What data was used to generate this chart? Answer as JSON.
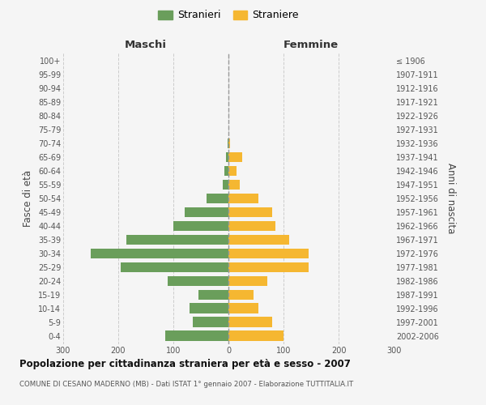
{
  "age_groups": [
    "0-4",
    "5-9",
    "10-14",
    "15-19",
    "20-24",
    "25-29",
    "30-34",
    "35-39",
    "40-44",
    "45-49",
    "50-54",
    "55-59",
    "60-64",
    "65-69",
    "70-74",
    "75-79",
    "80-84",
    "85-89",
    "90-94",
    "95-99",
    "100+"
  ],
  "birth_years": [
    "2002-2006",
    "1997-2001",
    "1992-1996",
    "1987-1991",
    "1982-1986",
    "1977-1981",
    "1972-1976",
    "1967-1971",
    "1962-1966",
    "1957-1961",
    "1952-1956",
    "1947-1951",
    "1942-1946",
    "1937-1941",
    "1932-1936",
    "1927-1931",
    "1922-1926",
    "1917-1921",
    "1912-1916",
    "1907-1911",
    "≤ 1906"
  ],
  "males": [
    115,
    65,
    70,
    55,
    110,
    195,
    250,
    185,
    100,
    80,
    40,
    10,
    7,
    5,
    2,
    0,
    0,
    0,
    0,
    0,
    0
  ],
  "females": [
    100,
    80,
    55,
    45,
    70,
    145,
    145,
    110,
    85,
    80,
    55,
    20,
    15,
    25,
    3,
    0,
    0,
    0,
    0,
    0,
    0
  ],
  "male_color": "#6a9e5b",
  "female_color": "#f5b731",
  "title": "Popolazione per cittadinanza straniera per età e sesso - 2007",
  "subtitle": "COMUNE DI CESANO MADERNO (MB) - Dati ISTAT 1° gennaio 2007 - Elaborazione TUTTITALIA.IT",
  "xlabel_left": "Maschi",
  "xlabel_right": "Femmine",
  "ylabel_left": "Fasce di età",
  "ylabel_right": "Anni di nascita",
  "legend_male": "Stranieri",
  "legend_female": "Straniere",
  "xlim": 300,
  "background_color": "#f5f5f5",
  "grid_color": "#cccccc"
}
